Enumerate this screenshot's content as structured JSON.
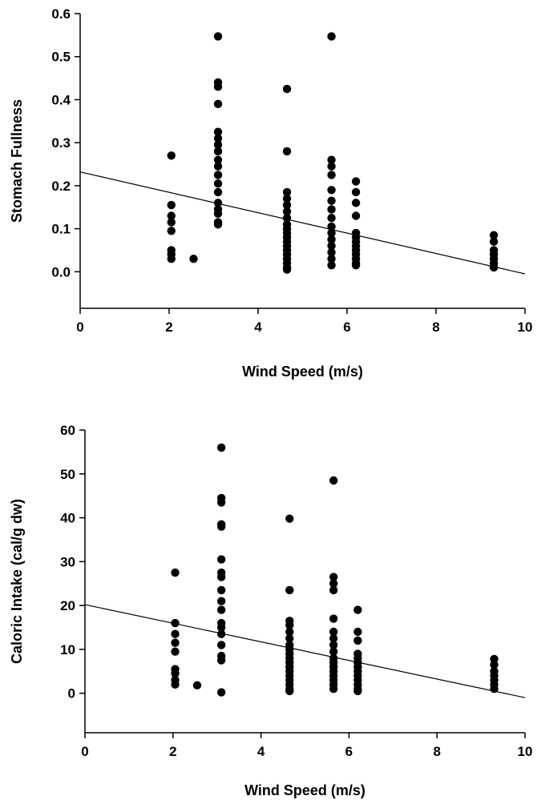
{
  "chart_data": [
    {
      "type": "scatter",
      "xlabel": "Wind Speed (m/s)",
      "ylabel": "Stomach Fullness",
      "xlim": [
        0,
        10
      ],
      "ylim": [
        -0.085,
        0.6
      ],
      "xticks": [
        "0",
        "2",
        "4",
        "6",
        "8",
        "10"
      ],
      "yticks": [
        "0.0",
        "0.1",
        "0.2",
        "0.3",
        "0.4",
        "0.5",
        "0.6"
      ],
      "grid": false,
      "regression_line": {
        "x": [
          0,
          10
        ],
        "y": [
          0.232,
          -0.005
        ]
      },
      "points": [
        [
          2.05,
          0.27
        ],
        [
          2.05,
          0.155
        ],
        [
          2.05,
          0.13
        ],
        [
          2.05,
          0.115
        ],
        [
          2.05,
          0.095
        ],
        [
          2.05,
          0.05
        ],
        [
          2.05,
          0.04
        ],
        [
          2.05,
          0.03
        ],
        [
          2.55,
          0.03
        ],
        [
          3.1,
          0.547
        ],
        [
          3.1,
          0.44
        ],
        [
          3.1,
          0.43
        ],
        [
          3.1,
          0.39
        ],
        [
          3.1,
          0.325
        ],
        [
          3.1,
          0.31
        ],
        [
          3.1,
          0.295
        ],
        [
          3.1,
          0.28
        ],
        [
          3.1,
          0.26
        ],
        [
          3.1,
          0.245
        ],
        [
          3.1,
          0.225
        ],
        [
          3.1,
          0.205
        ],
        [
          3.1,
          0.185
        ],
        [
          3.1,
          0.16
        ],
        [
          3.1,
          0.145
        ],
        [
          3.1,
          0.135
        ],
        [
          3.1,
          0.115
        ],
        [
          3.1,
          0.11
        ],
        [
          4.65,
          0.425
        ],
        [
          4.65,
          0.28
        ],
        [
          4.65,
          0.185
        ],
        [
          4.65,
          0.17
        ],
        [
          4.65,
          0.155
        ],
        [
          4.65,
          0.14
        ],
        [
          4.65,
          0.125
        ],
        [
          4.65,
          0.11
        ],
        [
          4.65,
          0.1
        ],
        [
          4.65,
          0.09
        ],
        [
          4.65,
          0.08
        ],
        [
          4.65,
          0.07
        ],
        [
          4.65,
          0.06
        ],
        [
          4.65,
          0.05
        ],
        [
          4.65,
          0.04
        ],
        [
          4.65,
          0.03
        ],
        [
          4.65,
          0.02
        ],
        [
          4.65,
          0.01
        ],
        [
          4.65,
          0.005
        ],
        [
          5.65,
          0.547
        ],
        [
          5.65,
          0.26
        ],
        [
          5.65,
          0.245
        ],
        [
          5.65,
          0.225
        ],
        [
          5.65,
          0.19
        ],
        [
          5.65,
          0.165
        ],
        [
          5.65,
          0.145
        ],
        [
          5.65,
          0.125
        ],
        [
          5.65,
          0.105
        ],
        [
          5.65,
          0.09
        ],
        [
          5.65,
          0.075
        ],
        [
          5.65,
          0.06
        ],
        [
          5.65,
          0.045
        ],
        [
          5.65,
          0.03
        ],
        [
          5.65,
          0.015
        ],
        [
          6.2,
          0.21
        ],
        [
          6.2,
          0.185
        ],
        [
          6.2,
          0.16
        ],
        [
          6.2,
          0.13
        ],
        [
          6.2,
          0.09
        ],
        [
          6.2,
          0.08
        ],
        [
          6.2,
          0.07
        ],
        [
          6.2,
          0.06
        ],
        [
          6.2,
          0.05
        ],
        [
          6.2,
          0.04
        ],
        [
          6.2,
          0.03
        ],
        [
          6.2,
          0.02
        ],
        [
          6.2,
          0.015
        ],
        [
          9.3,
          0.085
        ],
        [
          9.3,
          0.07
        ],
        [
          9.3,
          0.05
        ],
        [
          9.3,
          0.04
        ],
        [
          9.3,
          0.03
        ],
        [
          9.3,
          0.02
        ],
        [
          9.3,
          0.01
        ]
      ]
    },
    {
      "type": "scatter",
      "xlabel": "Wind Speed (m/s)",
      "ylabel": "Caloric Intake (cal/g dw)",
      "xlim": [
        0,
        10
      ],
      "ylim": [
        -9,
        60
      ],
      "xticks": [
        "0",
        "2",
        "4",
        "6",
        "8",
        "10"
      ],
      "yticks": [
        "0",
        "10",
        "20",
        "30",
        "40",
        "50",
        "60"
      ],
      "grid": false,
      "regression_line": {
        "x": [
          0,
          10
        ],
        "y": [
          20.2,
          -1.0
        ]
      },
      "points": [
        [
          2.05,
          27.5
        ],
        [
          2.05,
          16
        ],
        [
          2.05,
          13.5
        ],
        [
          2.05,
          11.5
        ],
        [
          2.05,
          9.5
        ],
        [
          2.05,
          5.5
        ],
        [
          2.05,
          4.5
        ],
        [
          2.05,
          3
        ],
        [
          2.05,
          2
        ],
        [
          2.55,
          1.8
        ],
        [
          3.1,
          56
        ],
        [
          3.1,
          44.5
        ],
        [
          3.1,
          43.5
        ],
        [
          3.1,
          38.5
        ],
        [
          3.1,
          38
        ],
        [
          3.1,
          30.5
        ],
        [
          3.1,
          27.5
        ],
        [
          3.1,
          26.5
        ],
        [
          3.1,
          23.5
        ],
        [
          3.1,
          21
        ],
        [
          3.1,
          19
        ],
        [
          3.1,
          16
        ],
        [
          3.1,
          15
        ],
        [
          3.1,
          13.5
        ],
        [
          3.1,
          11
        ],
        [
          3.1,
          8.5
        ],
        [
          3.1,
          7.5
        ],
        [
          3.1,
          0.2
        ],
        [
          4.65,
          39.8
        ],
        [
          4.65,
          23.5
        ],
        [
          4.65,
          16.5
        ],
        [
          4.65,
          15.5
        ],
        [
          4.65,
          14
        ],
        [
          4.65,
          12.5
        ],
        [
          4.65,
          11
        ],
        [
          4.65,
          10
        ],
        [
          4.65,
          9
        ],
        [
          4.65,
          8
        ],
        [
          4.65,
          7
        ],
        [
          4.65,
          6
        ],
        [
          4.65,
          5
        ],
        [
          4.65,
          4
        ],
        [
          4.65,
          3
        ],
        [
          4.65,
          2
        ],
        [
          4.65,
          1
        ],
        [
          4.65,
          0.5
        ],
        [
          5.65,
          48.5
        ],
        [
          5.65,
          26.5
        ],
        [
          5.65,
          25
        ],
        [
          5.65,
          23.5
        ],
        [
          5.65,
          17
        ],
        [
          5.65,
          14
        ],
        [
          5.65,
          12.5
        ],
        [
          5.65,
          11
        ],
        [
          5.65,
          9.5
        ],
        [
          5.65,
          8
        ],
        [
          5.65,
          7
        ],
        [
          5.65,
          6
        ],
        [
          5.65,
          5
        ],
        [
          5.65,
          4
        ],
        [
          5.65,
          3
        ],
        [
          5.65,
          2
        ],
        [
          5.65,
          1
        ],
        [
          6.2,
          19
        ],
        [
          6.2,
          14
        ],
        [
          6.2,
          12
        ],
        [
          6.2,
          9
        ],
        [
          6.2,
          8
        ],
        [
          6.2,
          7
        ],
        [
          6.2,
          6
        ],
        [
          6.2,
          5
        ],
        [
          6.2,
          4
        ],
        [
          6.2,
          3
        ],
        [
          6.2,
          2
        ],
        [
          6.2,
          1
        ],
        [
          6.2,
          0.5
        ],
        [
          9.3,
          7.8
        ],
        [
          9.3,
          6.5
        ],
        [
          9.3,
          5
        ],
        [
          9.3,
          4
        ],
        [
          9.3,
          3
        ],
        [
          9.3,
          2
        ],
        [
          9.3,
          1
        ]
      ]
    }
  ]
}
